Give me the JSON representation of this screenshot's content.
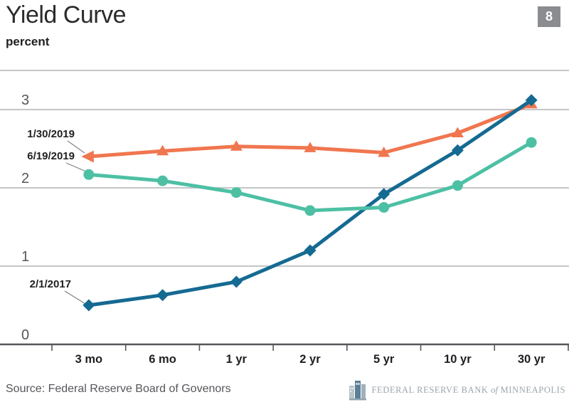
{
  "header": {
    "title": "Yield Curve",
    "unit_label": "percent",
    "page_number": "8"
  },
  "chart_data": {
    "type": "line",
    "title": "Yield Curve",
    "ylabel": "percent",
    "xlabel": "",
    "categories": [
      "3 mo",
      "6 mo",
      "1 yr",
      "2 yr",
      "5 yr",
      "10 yr",
      "30 yr"
    ],
    "y_ticks": [
      0,
      1,
      2,
      3
    ],
    "ylim": [
      0,
      3.5
    ],
    "grid": "horizontal",
    "legend_position": "inline-labels-left",
    "series": [
      {
        "name": "1/30/2019",
        "color": "#f0764f",
        "marker": "triangle",
        "first_marker": "left-arrow",
        "values": [
          2.4,
          2.47,
          2.53,
          2.51,
          2.45,
          2.7,
          3.07
        ]
      },
      {
        "name": "6/19/2019",
        "color": "#4dc0a4",
        "marker": "circle",
        "values": [
          2.17,
          2.09,
          1.94,
          1.71,
          1.75,
          2.03,
          2.58
        ]
      },
      {
        "name": "2/1/2017",
        "color": "#156a92",
        "marker": "diamond",
        "values": [
          0.5,
          0.63,
          0.8,
          1.2,
          1.92,
          2.48,
          3.12
        ]
      }
    ],
    "colors": {
      "gridline": "#b1b3b6",
      "axis": "#55565a",
      "tick_label": "#55565a",
      "category_label": "#1f1f20"
    }
  },
  "footer": {
    "source": "Source: Federal Reserve Board of Govenors",
    "brand_name": "FEDERAL RESERVE BANK",
    "brand_of": "of",
    "brand_city": "MINNEAPOLIS"
  }
}
